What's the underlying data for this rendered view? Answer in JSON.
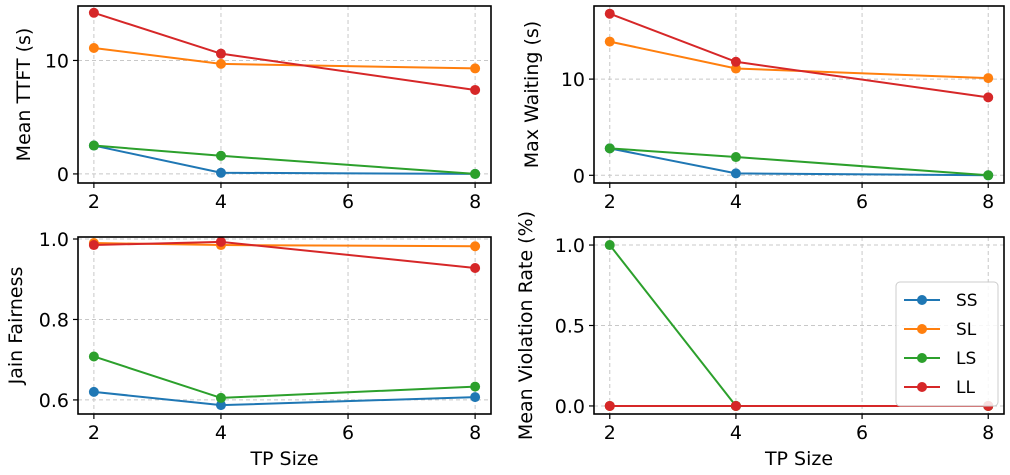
{
  "colors": {
    "SS": "#1f77b4",
    "SL": "#ff7f0e",
    "LS": "#2ca02c",
    "LL": "#d62728",
    "grid": "#c8c8c8"
  },
  "chart_data": [
    {
      "type": "line",
      "xlabel": "",
      "ylabel": "Mean TTFT (s)",
      "x": [
        2,
        4,
        8
      ],
      "xlim": [
        1.75,
        8.25
      ],
      "xticks": [
        2,
        4,
        6,
        8
      ],
      "ylim": [
        -0.8,
        14.8
      ],
      "yticks": [
        0,
        10
      ],
      "grid": true,
      "series": [
        {
          "name": "SS",
          "values": [
            2.5,
            0.1,
            0.0
          ]
        },
        {
          "name": "SL",
          "values": [
            11.1,
            9.7,
            9.3
          ]
        },
        {
          "name": "LS",
          "values": [
            2.5,
            1.6,
            0.0
          ]
        },
        {
          "name": "LL",
          "values": [
            14.2,
            10.6,
            7.4
          ]
        }
      ]
    },
    {
      "type": "line",
      "xlabel": "",
      "ylabel": "Max Waiting (s)",
      "x": [
        2,
        4,
        8
      ],
      "xlim": [
        1.75,
        8.25
      ],
      "xticks": [
        2,
        4,
        6,
        8
      ],
      "ylim": [
        -0.8,
        17.6
      ],
      "yticks": [
        0,
        10
      ],
      "grid": true,
      "series": [
        {
          "name": "SS",
          "values": [
            2.8,
            0.2,
            0.0
          ]
        },
        {
          "name": "SL",
          "values": [
            13.9,
            11.1,
            10.1
          ]
        },
        {
          "name": "LS",
          "values": [
            2.8,
            1.9,
            0.0
          ]
        },
        {
          "name": "LL",
          "values": [
            16.8,
            11.8,
            8.1
          ]
        }
      ]
    },
    {
      "type": "line",
      "xlabel": "TP Size",
      "ylabel": "Jain Fairness",
      "x": [
        2,
        4,
        8
      ],
      "xlim": [
        1.75,
        8.25
      ],
      "xticks": [
        2,
        4,
        6,
        8
      ],
      "ylim": [
        0.565,
        1.005
      ],
      "yticks": [
        0.6,
        0.8,
        1.0
      ],
      "grid": true,
      "series": [
        {
          "name": "SS",
          "values": [
            0.62,
            0.587,
            0.607
          ]
        },
        {
          "name": "SL",
          "values": [
            0.99,
            0.985,
            0.982
          ]
        },
        {
          "name": "LS",
          "values": [
            0.708,
            0.605,
            0.633
          ]
        },
        {
          "name": "LL",
          "values": [
            0.985,
            0.993,
            0.928
          ]
        }
      ]
    },
    {
      "type": "line",
      "xlabel": "TP Size",
      "ylabel": "Mean Violation Rate (%)",
      "x": [
        2,
        4,
        8
      ],
      "xlim": [
        1.75,
        8.25
      ],
      "xticks": [
        2,
        4,
        6,
        8
      ],
      "ylim": [
        -0.05,
        1.05
      ],
      "yticks": [
        0.0,
        0.5,
        1.0
      ],
      "grid": true,
      "legend": "right",
      "series": [
        {
          "name": "SS",
          "values": [
            0.0,
            0.0,
            0.0
          ]
        },
        {
          "name": "SL",
          "values": [
            0.0,
            0.0,
            0.0
          ]
        },
        {
          "name": "LS",
          "values": [
            1.0,
            0.0,
            0.0
          ]
        },
        {
          "name": "LL",
          "values": [
            0.0,
            0.0,
            0.0
          ]
        }
      ]
    }
  ]
}
